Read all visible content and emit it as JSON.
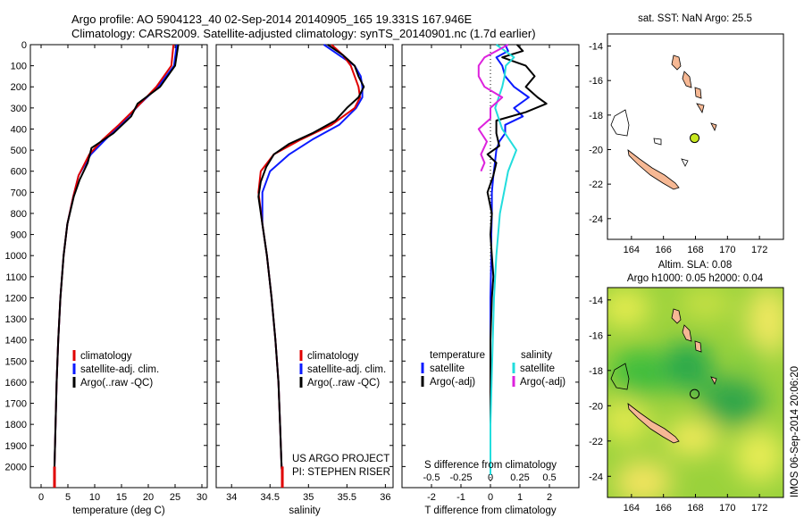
{
  "titles": {
    "line1": "Argo profile: AO 5904123_40 02-Sep-2014 20140905_165 19.331S 167.946E",
    "line2": "Climatology: CARS2009. Satellite-adjusted climatology: synTS_20140901.nc (1.7d earlier)"
  },
  "credits": {
    "project": "US ARGO PROJECT",
    "pi": "PI: STEPHEN RISER",
    "stamp": "IMOS 06-Sep-2014 20:06:20"
  },
  "colors": {
    "clim": "#e00000",
    "sat": "#0a1aff",
    "argo": "#000000",
    "sat_s": "#22dddd",
    "argo_s": "#dd22dd",
    "land": "#f6b894"
  },
  "legend_profiles": [
    "climatology",
    "satellite-adj. clim.",
    "Argo(..raw -QC)"
  ],
  "legend_diff": {
    "temperature": "temperature",
    "salinity": "salinity",
    "satellite": "satellite",
    "argo": "Argo(-adj)"
  },
  "map_top": {
    "title": "sat. SST: NaN Argo: 25.5"
  },
  "map_bottom": {
    "title1": "Altim. SLA: 0.08",
    "title2": "Argo h1000: 0.05 h2000: 0.04"
  },
  "chart_data": [
    {
      "type": "line",
      "xlabel": "temperature (deg C)",
      "ylim": [
        2100,
        0
      ],
      "xlim": [
        -2,
        31
      ],
      "xticks": [
        "0",
        "5",
        "10",
        "15",
        "20",
        "25",
        "30"
      ],
      "yticks": [
        "0",
        "100",
        "200",
        "300",
        "400",
        "500",
        "600",
        "700",
        "800",
        "900",
        "1000",
        "1100",
        "1200",
        "1300",
        "1400",
        "1500",
        "1600",
        "1700",
        "1800",
        "1900",
        "2000"
      ],
      "series": [
        {
          "name": "climatology",
          "depth": [
            0,
            100,
            200,
            280,
            380,
            450,
            520,
            620,
            720,
            850,
            1000,
            1200,
            1400,
            1600,
            1800,
            2000,
            2040
          ],
          "values": [
            24.7,
            24.3,
            21.5,
            18.5,
            14.5,
            11.5,
            9,
            7,
            6,
            4.9,
            4.2,
            3.6,
            3.2,
            2.9,
            2.7,
            2.5,
            2.5
          ]
        },
        {
          "name": "satellite-adj. clim.",
          "depth": [
            0,
            100,
            200,
            280,
            380,
            450,
            520,
            620,
            720,
            850,
            1000,
            1200,
            1400,
            1600,
            1800,
            2000,
            2040
          ],
          "values": [
            25.3,
            24.8,
            21.8,
            18.5,
            14.8,
            12,
            9.3,
            7,
            6,
            4.9,
            4.2,
            3.6,
            3.2,
            2.9,
            2.7,
            2.5,
            2.5
          ]
        },
        {
          "name": "Argo(..raw -QC)",
          "depth": [
            0,
            100,
            200,
            280,
            340,
            420,
            490,
            560,
            640,
            720,
            850,
            1000,
            1200,
            1400,
            1600,
            1800,
            2000,
            2040
          ],
          "values": [
            25.6,
            25,
            22.2,
            18,
            16.8,
            13.5,
            9.4,
            8.7,
            7.2,
            6.1,
            4.9,
            4.2,
            3.6,
            3.2,
            2.9,
            2.7,
            2.5,
            2.5
          ]
        }
      ]
    },
    {
      "type": "line",
      "xlabel": "salinity",
      "ylim": [
        2100,
        0
      ],
      "xlim": [
        33.8,
        36.1
      ],
      "xticks": [
        "34",
        "34.5",
        "35",
        "35.5",
        "36"
      ],
      "series": [
        {
          "name": "climatology",
          "depth": [
            0,
            50,
            100,
            150,
            200,
            250,
            300,
            380,
            450,
            520,
            600,
            700,
            850,
            1000,
            1200,
            1400,
            1600,
            1800,
            2000,
            2040
          ],
          "values": [
            35.3,
            35.45,
            35.55,
            35.6,
            35.65,
            35.67,
            35.6,
            35.3,
            34.9,
            34.55,
            34.38,
            34.35,
            34.4,
            34.46,
            34.52,
            34.57,
            34.61,
            34.63,
            34.65,
            34.66
          ]
        },
        {
          "name": "satellite-adj. clim.",
          "depth": [
            0,
            50,
            100,
            150,
            200,
            250,
            300,
            380,
            450,
            520,
            600,
            700,
            850,
            1000,
            1200,
            1400,
            1600,
            1800,
            2000,
            2040
          ],
          "values": [
            35.2,
            35.4,
            35.6,
            35.68,
            35.7,
            35.7,
            35.62,
            35.4,
            35.05,
            34.75,
            34.5,
            34.4,
            34.4,
            34.46,
            34.52,
            34.57,
            34.61,
            34.63,
            34.65,
            34.66
          ]
        },
        {
          "name": "Argo(..raw -QC)",
          "depth": [
            0,
            50,
            100,
            150,
            200,
            250,
            300,
            360,
            420,
            470,
            520,
            580,
            650,
            720,
            850,
            1000,
            1200,
            1400,
            1600,
            1800,
            2000,
            2040
          ],
          "values": [
            35.25,
            35.45,
            35.6,
            35.65,
            35.72,
            35.65,
            35.5,
            35.35,
            35.05,
            34.75,
            34.55,
            34.45,
            34.38,
            34.35,
            34.4,
            34.46,
            34.52,
            34.57,
            34.61,
            34.63,
            34.65,
            34.66
          ]
        }
      ]
    },
    {
      "type": "line",
      "xlabel": "T difference from climatology",
      "xlabel_top": "S difference from climatology",
      "ylim": [
        2100,
        0
      ],
      "xlim": [
        -3,
        3
      ],
      "xticks": [
        "-2",
        "-1",
        "0",
        "1",
        "2"
      ],
      "xticks_top": [
        "-0.5",
        "-0.25",
        "0",
        "0.25",
        "0.5"
      ],
      "series": [
        {
          "name": "temperature satellite",
          "depth": [
            0,
            30,
            60,
            100,
            150,
            200,
            250,
            300,
            340,
            380,
            420,
            460,
            500,
            560,
            620,
            700,
            800,
            900,
            1000,
            1200,
            1400,
            1600,
            1800,
            2000,
            2040
          ],
          "values": [
            0.5,
            0.6,
            0.2,
            0.4,
            0.5,
            0.8,
            1.3,
            0.8,
            1.1,
            0.5,
            0.5,
            0.3,
            0.2,
            0.15,
            0.1,
            0.05,
            0.05,
            0.03,
            0.03,
            0,
            0,
            0,
            0,
            0,
            0
          ]
        },
        {
          "name": "temperature Argo(-adj)",
          "depth": [
            0,
            30,
            60,
            100,
            150,
            200,
            250,
            280,
            320,
            360,
            420,
            480,
            520,
            560,
            620,
            700,
            800,
            900,
            1000,
            1100,
            1200,
            1400,
            1600,
            1800,
            2000,
            2040
          ],
          "values": [
            0.9,
            1.1,
            0.4,
            1.2,
            1.5,
            1.2,
            1.6,
            1.9,
            1.2,
            0.2,
            0.2,
            0.3,
            -0.1,
            0.2,
            0.1,
            -0.1,
            0.05,
            0.0,
            0.05,
            0.1,
            0.05,
            0,
            0,
            0,
            0,
            0
          ]
        },
        {
          "name": "salinity satellite",
          "depth": [
            0,
            60,
            100,
            150,
            200,
            300,
            400,
            500,
            600,
            800,
            1000,
            1200,
            1400,
            1600,
            1800,
            2000,
            2040
          ],
          "values": [
            0.05,
            0.2,
            0.13,
            0.12,
            0.1,
            0.04,
            0.1,
            0.22,
            0.15,
            0.08,
            0.05,
            0.03,
            0.02,
            0.01,
            0,
            0,
            0
          ]
        },
        {
          "name": "salinity Argo(-adj)",
          "depth": [
            0,
            30,
            60,
            100,
            150,
            200,
            250,
            300,
            350,
            400,
            460,
            520,
            560,
            600
          ],
          "values": [
            0.15,
            0.05,
            -0.05,
            -0.1,
            -0.1,
            -0.05,
            0.1,
            0.0,
            0.0,
            -0.1,
            -0.03,
            -0.08,
            -0.05,
            -0.08
          ]
        }
      ]
    },
    {
      "type": "scatter",
      "title": "sat. SST: NaN Argo: 25.5",
      "xlim": [
        162.5,
        173.5
      ],
      "ylim": [
        -25.2,
        -13.3
      ],
      "xticks": [
        "164",
        "166",
        "168",
        "170",
        "172"
      ],
      "yticks": [
        "-14",
        "-16",
        "-18",
        "-20",
        "-22",
        "-24"
      ],
      "point": {
        "lon": 167.946,
        "lat": -19.331
      }
    },
    {
      "type": "heatmap",
      "title": "Altim. SLA: 0.08",
      "subtitle": "Argo h1000: 0.05 h2000: 0.04",
      "xlim": [
        162.5,
        173.5
      ],
      "ylim": [
        -25.2,
        -13.3
      ],
      "xticks": [
        "164",
        "166",
        "168",
        "170",
        "172"
      ],
      "yticks": [
        "-14",
        "-16",
        "-18",
        "-20",
        "-22",
        "-24"
      ],
      "point": {
        "lon": 167.946,
        "lat": -19.331
      }
    }
  ]
}
